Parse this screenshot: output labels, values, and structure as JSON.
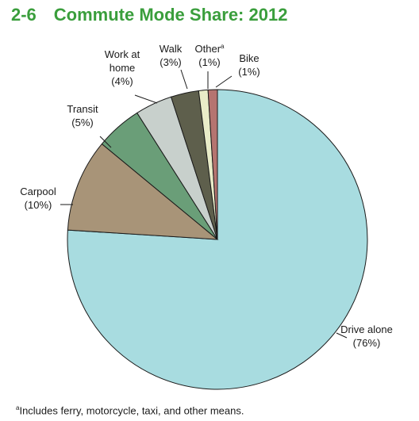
{
  "header": {
    "figure_number": "2-6",
    "title": "Commute Mode Share: 2012"
  },
  "footnote": {
    "marker": "a",
    "text": "Includes ferry, motorcycle, taxi, and other means."
  },
  "chart_data": {
    "type": "pie",
    "title": "Commute Mode Share: 2012",
    "slices": [
      {
        "label": "Drive alone",
        "value": 76,
        "value_label": "(76%)",
        "color": "#a8dce0"
      },
      {
        "label": "Carpool",
        "value": 10,
        "value_label": "(10%)",
        "color": "#a89478"
      },
      {
        "label": "Transit",
        "value": 5,
        "value_label": "(5%)",
        "color": "#6a9e78"
      },
      {
        "label": "Work at home",
        "value": 4,
        "value_label": "(4%)",
        "color": "#c8d0cc"
      },
      {
        "label": "Walk",
        "value": 3,
        "value_label": "(3%)",
        "color": "#5e5f4c"
      },
      {
        "label": "Other",
        "value": 1,
        "value_label": "(1%)",
        "footnote_marker": "a",
        "color": "#e9ecc8"
      },
      {
        "label": "Bike",
        "value": 1,
        "value_label": "(1%)",
        "color": "#b57470"
      }
    ]
  }
}
